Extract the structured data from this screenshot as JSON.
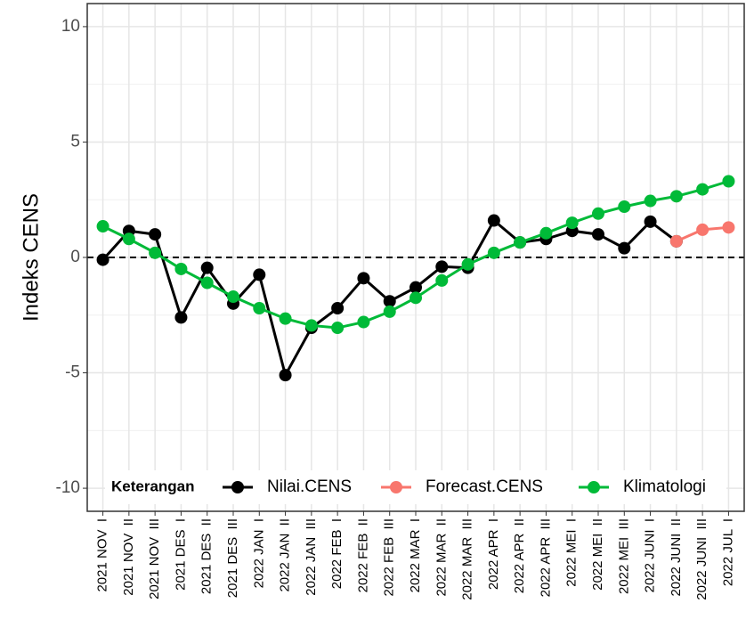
{
  "chart_data": {
    "type": "line",
    "y_label": "Indeks CENS",
    "categories": [
      "2021 NOV  I",
      "2021 NOV  II",
      "2021 NOV  III",
      "2021 DES  I",
      "2021 DES  II",
      "2021 DES  III",
      "2022 JAN  I",
      "2022 JAN  II",
      "2022 JAN  III",
      "2022 FEB  I",
      "2022 FEB  II",
      "2022 FEB  III",
      "2022 MAR  I",
      "2022 MAR  II",
      "2022 MAR  III",
      "2022 APR  I",
      "2022 APR  II",
      "2022 APR  III",
      "2022 MEI  I",
      "2022 MEI  II",
      "2022 MEI  III",
      "2022 JUNI  I",
      "2022 JUNI  II",
      "2022 JUNI  III",
      "2022 JUL  I"
    ],
    "series": [
      {
        "name": "Nilai.CENS",
        "color": "#000000",
        "values": [
          -0.1,
          1.15,
          1.0,
          -2.6,
          -0.45,
          -2.0,
          -0.75,
          -5.1,
          -3.05,
          -2.2,
          -0.9,
          -1.9,
          -1.3,
          -0.4,
          -0.45,
          1.6,
          0.65,
          0.8,
          1.15,
          1.0,
          0.4,
          1.55,
          0.7,
          null,
          null
        ]
      },
      {
        "name": "Forecast.CENS",
        "color": "#f8766d",
        "values": [
          null,
          null,
          null,
          null,
          null,
          null,
          null,
          null,
          null,
          null,
          null,
          null,
          null,
          null,
          null,
          null,
          null,
          null,
          null,
          null,
          null,
          null,
          0.7,
          1.2,
          1.3
        ]
      },
      {
        "name": "Klimatologi",
        "color": "#00ba38",
        "values": [
          1.35,
          0.8,
          0.2,
          -0.5,
          -1.1,
          -1.7,
          -2.2,
          -2.65,
          -2.95,
          -3.05,
          -2.8,
          -2.35,
          -1.75,
          -1.0,
          -0.3,
          0.2,
          0.65,
          1.05,
          1.5,
          1.9,
          2.2,
          2.45,
          2.65,
          2.95,
          3.3
        ]
      }
    ],
    "legend_title": "Keterangan",
    "legend_position": "bottom-inside",
    "hline": 0,
    "ylim": [
      -11,
      11
    ],
    "yticks": [
      -10,
      -5,
      0,
      5,
      10
    ],
    "grid": true
  }
}
